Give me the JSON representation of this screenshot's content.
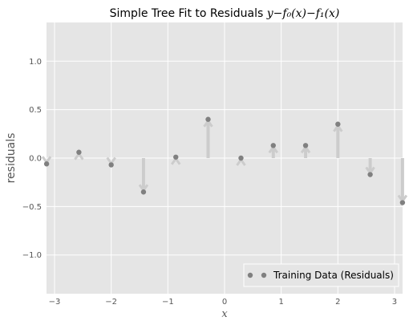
{
  "chart_data": {
    "type": "scatter",
    "title_text": "Simple Tree Fit to Residuals ",
    "title_math": "y−f₀(x)−f₁(x)",
    "xlabel": "x",
    "ylabel": "residuals",
    "xlim": [
      -3.14159,
      3.14159
    ],
    "ylim": [
      -1.4,
      1.4
    ],
    "xticks": [
      -3,
      -2,
      -1,
      0,
      1,
      2,
      3
    ],
    "yticks": [
      -1.0,
      -0.5,
      0.0,
      0.5,
      1.0
    ],
    "xtick_labels": [
      "−3",
      "−2",
      "−1",
      "0",
      "1",
      "2",
      "3"
    ],
    "ytick_labels": [
      "−1.0",
      "−0.5",
      "0.0",
      "0.5",
      "1.0"
    ],
    "grid": true,
    "legend_position": "bottom-right",
    "series": [
      {
        "name": "Training Data (Residuals)",
        "color": "#808080",
        "x": [
          -3.14,
          -2.57,
          -2.0,
          -1.43,
          -0.86,
          -0.29,
          0.29,
          0.86,
          1.43,
          2.0,
          2.57,
          3.14
        ],
        "y": [
          -0.06,
          0.06,
          -0.07,
          -0.35,
          0.01,
          0.4,
          0.0,
          0.13,
          0.13,
          0.35,
          -0.17,
          -0.46
        ]
      }
    ],
    "arrow_color": "#cccccc",
    "background": "#e5e5e5"
  }
}
